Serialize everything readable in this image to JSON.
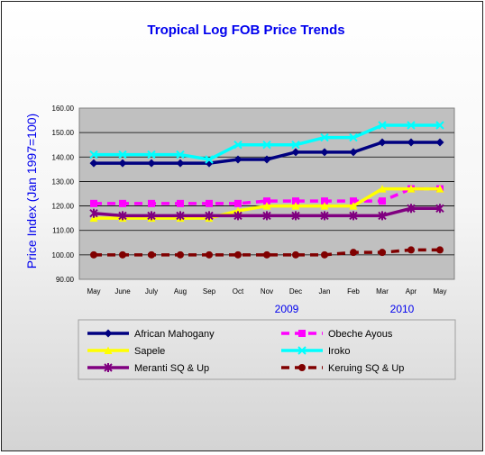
{
  "chart_data": {
    "type": "line",
    "title": "Tropical Log FOB Price Trends",
    "ylabel": "Price Index (Jan 1997=100)",
    "xlabel": "",
    "categories": [
      "May",
      "June",
      "July",
      "Aug",
      "Sep",
      "Oct",
      "Nov",
      "Dec",
      "Jan",
      "Feb",
      "Mar",
      "Apr",
      "May"
    ],
    "year_labels": [
      {
        "text": "2009",
        "category_index": 7
      },
      {
        "text": "2010",
        "category_index": 11
      }
    ],
    "ylim": [
      90,
      160
    ],
    "yticks": [
      "90.00",
      "100.00",
      "110.00",
      "120.00",
      "130.00",
      "140.00",
      "150.00",
      "160.00"
    ],
    "grid": true,
    "legend_position": "bottom",
    "series": [
      {
        "name": "African Mahogany",
        "color": "#000080",
        "marker": "diamond",
        "dash": "solid",
        "values": [
          137.5,
          137.5,
          137.5,
          137.5,
          137.5,
          139,
          139,
          142,
          142,
          142,
          146,
          146,
          146
        ]
      },
      {
        "name": "Obeche Ayous",
        "color": "#ff00ff",
        "marker": "square",
        "dash": "dashed",
        "values": [
          121,
          121,
          121,
          121,
          121,
          121,
          122,
          122,
          122,
          122,
          122,
          127,
          127
        ]
      },
      {
        "name": "Sapele",
        "color": "#ffff00",
        "marker": "triangle",
        "dash": "solid",
        "values": [
          115,
          115,
          115,
          115,
          115,
          118,
          120,
          120,
          120,
          120,
          127,
          127,
          127
        ]
      },
      {
        "name": "Iroko",
        "color": "#00ffff",
        "marker": "x",
        "dash": "solid",
        "values": [
          141,
          141,
          141,
          141,
          139,
          145,
          145,
          145,
          148,
          148,
          153,
          153,
          153
        ]
      },
      {
        "name": "Meranti SQ & Up",
        "color": "#800080",
        "marker": "star",
        "dash": "solid",
        "values": [
          117,
          116,
          116,
          116,
          116,
          116,
          116,
          116,
          116,
          116,
          116,
          119,
          119
        ]
      },
      {
        "name": "Keruing SQ & Up",
        "color": "#800000",
        "marker": "circle",
        "dash": "dashed",
        "values": [
          100,
          100,
          100,
          100,
          100,
          100,
          100,
          100,
          100,
          101,
          101,
          102,
          102
        ]
      }
    ]
  }
}
